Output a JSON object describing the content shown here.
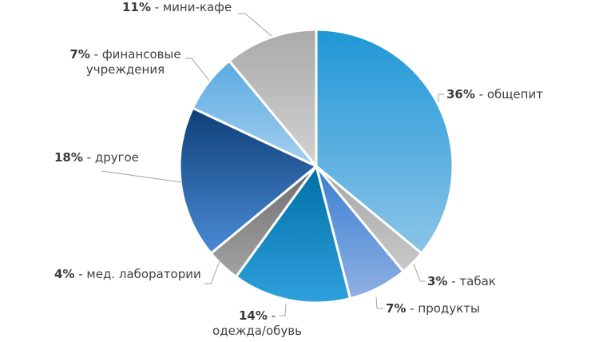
{
  "chart_data": {
    "type": "pie",
    "title": "",
    "start_angle_deg": 0,
    "direction": "clockwise",
    "center": [
      396,
      208
    ],
    "radius": 171,
    "legend": "none (data labels with leader lines)",
    "slices": [
      {
        "label": "общепит",
        "value": 36,
        "pct_text": "36%",
        "text": " - общепит",
        "color_top": "#1f97d6",
        "color_bottom": "#8cc4e8"
      },
      {
        "label": "табак",
        "value": 3,
        "pct_text": "3%",
        "text": " - табак",
        "color_top": "#a6a6a6",
        "color_bottom": "#c8c8c8"
      },
      {
        "label": "продукты",
        "value": 7,
        "pct_text": "7%",
        "text": " - продукты",
        "color_top": "#3a7fd2",
        "color_bottom": "#8fb0e2"
      },
      {
        "label": "одежда/обувь",
        "value": 14,
        "pct_text": "14%",
        "text": " -",
        "text2": "одежда/обувь",
        "color_top": "#006fa6",
        "color_bottom": "#2ea0dc"
      },
      {
        "label": "мед. лаборатории",
        "value": 4,
        "pct_text": "4%",
        "text": " - мед. лаборатории",
        "color_top": "#6e6e6e",
        "color_bottom": "#a3a3a3"
      },
      {
        "label": "другое",
        "value": 18,
        "pct_text": "18%",
        "text": " - другое",
        "color_top": "#0f3f77",
        "color_bottom": "#4a8bd6"
      },
      {
        "label": "финансовые учреждения",
        "value": 7,
        "pct_text": "7%",
        "text": " - финансовые",
        "text2": "учреждения",
        "color_top": "#5aaae0",
        "color_bottom": "#a6cff0"
      },
      {
        "label": "мини-кафе",
        "value": 11,
        "pct_text": "11%",
        "text": " - мини-кафе",
        "color_top": "#aaaaaa",
        "color_bottom": "#d2d2d2"
      }
    ]
  }
}
